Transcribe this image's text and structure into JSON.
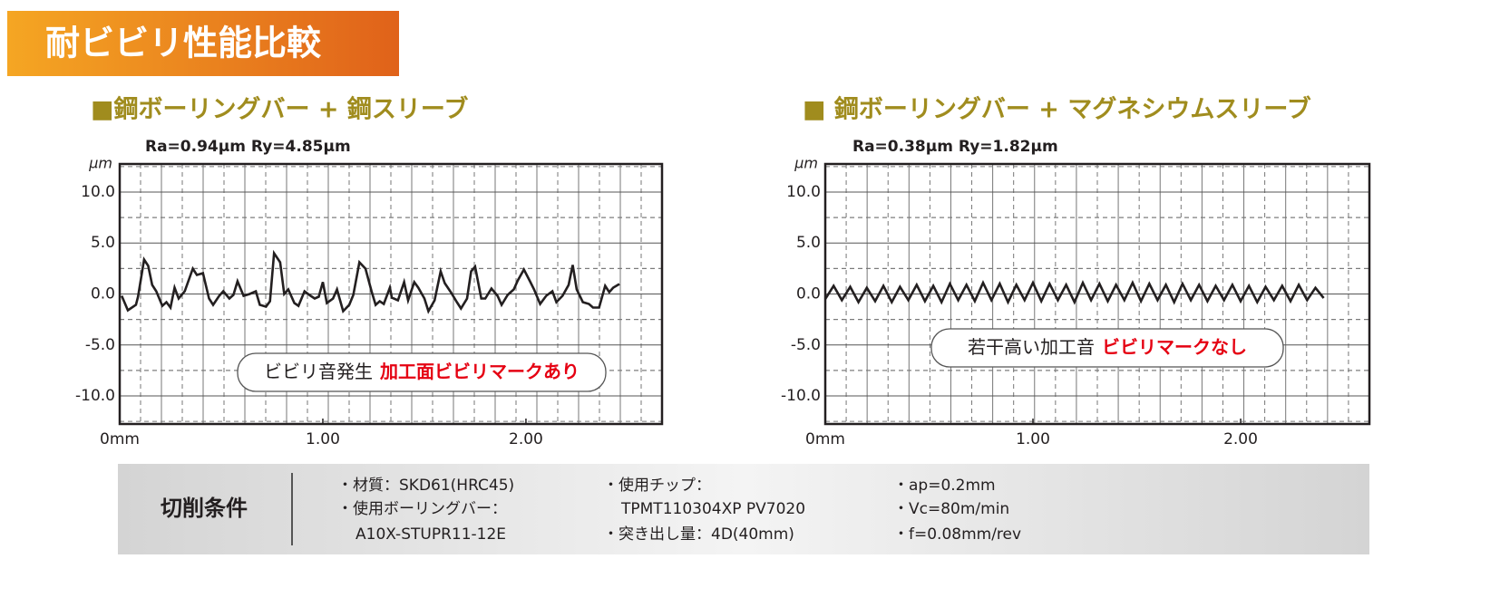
{
  "header": {
    "title": "耐ビビリ性能比較"
  },
  "chart_data": [
    {
      "type": "line",
      "title": "■鋼ボーリングバー + 鋼スリーブ",
      "subtitle": "Ra=0.94μm  Ry=4.85μm",
      "ylabel": "μm",
      "annotation": "ビビリ音発生",
      "annotation_highlight": "加工面ビビリマークあり",
      "xlim": [
        0,
        2.67
      ],
      "ylim": [
        -12.75,
        12.75
      ],
      "xticks": [
        {
          "value": 0,
          "label": "0mm"
        },
        {
          "value": 1,
          "label": "1.00"
        },
        {
          "value": 2,
          "label": "2.00"
        }
      ],
      "yticks": [
        {
          "value": 10,
          "label": "10.0"
        },
        {
          "value": 5,
          "label": "5.0"
        },
        {
          "value": 0,
          "label": "0.0"
        },
        {
          "value": -5,
          "label": "-5.0"
        },
        {
          "value": -10,
          "label": "-10.0"
        }
      ],
      "grid": true,
      "color": "#231f20",
      "x": [
        0.01,
        0.04,
        0.08,
        0.09,
        0.12,
        0.14,
        0.16,
        0.18,
        0.21,
        0.23,
        0.25,
        0.27,
        0.29,
        0.32,
        0.36,
        0.38,
        0.41,
        0.44,
        0.46,
        0.49,
        0.51,
        0.54,
        0.56,
        0.58,
        0.61,
        0.64,
        0.67,
        0.69,
        0.72,
        0.74,
        0.76,
        0.79,
        0.81,
        0.83,
        0.86,
        0.88,
        0.91,
        0.94,
        0.96,
        0.98,
        1.0,
        1.02,
        1.05,
        1.07,
        1.1,
        1.13,
        1.15,
        1.18,
        1.21,
        1.24,
        1.26,
        1.28,
        1.3,
        1.33,
        1.34,
        1.37,
        1.4,
        1.42,
        1.45,
        1.47,
        1.5,
        1.52,
        1.55,
        1.58,
        1.6,
        1.63,
        1.66,
        1.68,
        1.71,
        1.73,
        1.75,
        1.78,
        1.8,
        1.83,
        1.86,
        1.88,
        1.91,
        1.94,
        1.96,
        1.99,
        2.02,
        2.04,
        2.07,
        2.1,
        2.13,
        2.15,
        2.18,
        2.21,
        2.23,
        2.25,
        2.28,
        2.31,
        2.33,
        2.36,
        2.39,
        2.41,
        2.43,
        2.46
      ],
      "values": [
        -0.18,
        -1.6,
        -1.07,
        -0.27,
        3.38,
        2.76,
        0.89,
        0.27,
        -1.16,
        -0.8,
        -1.33,
        0.62,
        -0.44,
        0.27,
        2.49,
        1.87,
        2.04,
        -0.44,
        -1.07,
        -0.18,
        0.27,
        -0.44,
        -0.09,
        1.24,
        -0.18,
        0,
        0.27,
        -1.07,
        -1.24,
        -0.71,
        4.0,
        3.11,
        0,
        0.44,
        -0.89,
        -1.16,
        0.27,
        -0.18,
        -0.44,
        -0.27,
        1.16,
        -0.89,
        -0.44,
        0.44,
        -1.69,
        -1.07,
        -0.09,
        3.11,
        2.49,
        0.27,
        -1.07,
        -0.71,
        -0.98,
        0.62,
        -0.36,
        -0.62,
        1.16,
        -0.62,
        1.16,
        0.62,
        -0.44,
        -1.69,
        -0.62,
        2.22,
        1.07,
        0.18,
        -0.8,
        -1.42,
        -0.44,
        2.22,
        2.67,
        -0.44,
        -0.44,
        0.53,
        -0.18,
        -1.07,
        -0.09,
        0.44,
        1.33,
        2.4,
        1.24,
        0.44,
        -0.98,
        -0.18,
        0.27,
        -0.8,
        -0.18,
        0.89,
        2.84,
        0.44,
        -0.8,
        -0.98,
        -1.33,
        -1.33,
        0.8,
        0.18,
        0.62,
        0.98
      ]
    },
    {
      "type": "line",
      "title": "■ 鋼ボーリングバー + マグネシウムスリーブ",
      "subtitle": "Ra=0.38μm  Ry=1.82μm",
      "ylabel": "μm",
      "annotation": "若干高い加工音",
      "annotation_highlight": "ビビリマークなし",
      "xlim": [
        0,
        2.62
      ],
      "ylim": [
        -12.75,
        12.75
      ],
      "xticks": [
        {
          "value": 0,
          "label": "0mm"
        },
        {
          "value": 1,
          "label": "1.00"
        },
        {
          "value": 2,
          "label": "2.00"
        }
      ],
      "yticks": [
        {
          "value": 10,
          "label": "10.0"
        },
        {
          "value": 5,
          "label": "5.0"
        },
        {
          "value": 0,
          "label": "0.0"
        },
        {
          "value": -5,
          "label": "-5.0"
        },
        {
          "value": -10,
          "label": "-10.0"
        }
      ],
      "grid": true,
      "color": "#231f20",
      "x": [
        0,
        0.04,
        0.08,
        0.12,
        0.16,
        0.2,
        0.24,
        0.28,
        0.32,
        0.36,
        0.4,
        0.44,
        0.48,
        0.52,
        0.56,
        0.6,
        0.64,
        0.68,
        0.72,
        0.76,
        0.8,
        0.84,
        0.88,
        0.92,
        0.96,
        1.0,
        1.04,
        1.08,
        1.12,
        1.16,
        1.2,
        1.24,
        1.28,
        1.32,
        1.36,
        1.4,
        1.44,
        1.48,
        1.52,
        1.56,
        1.6,
        1.64,
        1.68,
        1.72,
        1.76,
        1.8,
        1.84,
        1.88,
        1.92,
        1.96,
        2.0,
        2.04,
        2.08,
        2.12,
        2.16,
        2.2,
        2.24,
        2.28,
        2.32,
        2.36,
        2.4
      ],
      "values": [
        -0.5,
        0.8,
        -0.6,
        0.7,
        -0.8,
        0.6,
        -0.7,
        0.8,
        -0.8,
        0.7,
        -0.6,
        0.9,
        -0.7,
        0.8,
        -0.8,
        1.0,
        -0.6,
        0.9,
        -0.7,
        1.1,
        -0.6,
        1.0,
        -0.8,
        0.9,
        -0.6,
        1.1,
        -0.7,
        1.0,
        -0.6,
        0.9,
        -0.8,
        1.1,
        -0.6,
        1.0,
        -0.7,
        0.9,
        -0.6,
        1.1,
        -0.7,
        1.0,
        -0.6,
        0.9,
        -0.8,
        1.0,
        -0.6,
        0.9,
        -0.7,
        0.8,
        -0.6,
        0.9,
        -0.7,
        0.8,
        -0.8,
        0.7,
        -0.6,
        0.8,
        -0.7,
        0.9,
        -0.6,
        0.6,
        -0.4
      ]
    }
  ],
  "conditions": {
    "label": "切削条件",
    "columns": [
      [
        "・材質：SKD61(HRC45)",
        "・使用ボーリングバー：",
        "A10X-STUPR11-12E"
      ],
      [
        "・使用チップ：",
        "TPMT110304XP PV7020",
        "・突き出し量：4D(40mm)"
      ],
      [
        "・ap=0.2mm",
        "・Vc=80m/min",
        "・f=0.08mm/rev"
      ]
    ]
  }
}
